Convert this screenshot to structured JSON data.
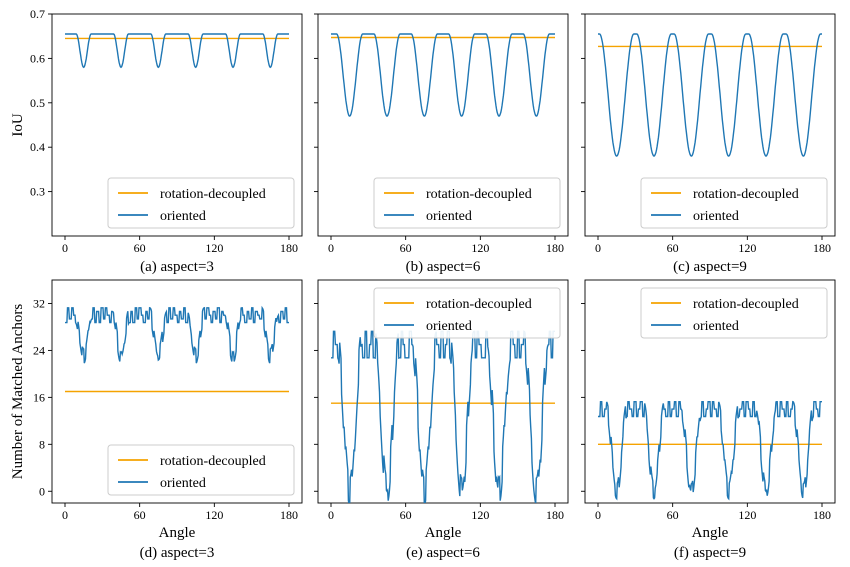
{
  "colors": {
    "rotation_decoupled": "#f5a300",
    "oriented": "#1f77b4"
  },
  "chart_data": [
    {
      "type": "line",
      "caption": "(a) aspect=3",
      "xlabel": "",
      "ylabel": "IoU",
      "xlim": [
        0,
        180
      ],
      "ylim": [
        0.2,
        0.7
      ],
      "xticks": [
        0,
        60,
        120,
        180
      ],
      "yticks": [
        0.3,
        0.4,
        0.5,
        0.6,
        0.7
      ],
      "legend": "bottom-right",
      "series": [
        {
          "name": "rotation-decoupled",
          "kind": "constant",
          "value": 0.645
        },
        {
          "name": "oriented",
          "kind": "periodic",
          "period": 30,
          "phase": 15,
          "top": 0.655,
          "bottom": 0.58,
          "plateau": 0.6,
          "spikes": []
        }
      ]
    },
    {
      "type": "line",
      "caption": "(b) aspect=6",
      "xlabel": "",
      "ylabel": "",
      "xlim": [
        0,
        180
      ],
      "ylim": [
        0.2,
        0.7
      ],
      "xticks": [
        0,
        60,
        120,
        180
      ],
      "yticks": [
        0.3,
        0.4,
        0.5,
        0.6,
        0.7
      ],
      "legend": "bottom-right",
      "series": [
        {
          "name": "rotation-decoupled",
          "kind": "constant",
          "value": 0.647
        },
        {
          "name": "oriented",
          "kind": "periodic",
          "period": 30,
          "phase": 15,
          "top": 0.655,
          "bottom": 0.47,
          "plateau": 0.3,
          "spikes": []
        }
      ]
    },
    {
      "type": "line",
      "caption": "(c) aspect=9",
      "xlabel": "",
      "ylabel": "",
      "xlim": [
        0,
        180
      ],
      "ylim": [
        0.2,
        0.7
      ],
      "xticks": [
        0,
        60,
        120,
        180
      ],
      "yticks": [
        0.3,
        0.4,
        0.5,
        0.6,
        0.7
      ],
      "legend": "bottom-right",
      "series": [
        {
          "name": "rotation-decoupled",
          "kind": "constant",
          "value": 0.627
        },
        {
          "name": "oriented",
          "kind": "periodic",
          "period": 30,
          "phase": 15,
          "top": 0.655,
          "bottom": 0.38,
          "plateau": 0.08,
          "spikes": []
        }
      ]
    },
    {
      "type": "line",
      "caption": "(d) aspect=3",
      "xlabel": "Angle",
      "ylabel": "Number of Matched Anchors",
      "xlim": [
        0,
        180
      ],
      "ylim": [
        -2,
        36
      ],
      "xticks": [
        0,
        60,
        120,
        180
      ],
      "yticks": [
        0,
        8,
        16,
        24,
        32
      ],
      "legend": "bottom-right",
      "series": [
        {
          "name": "rotation-decoupled",
          "kind": "constant",
          "value": 17
        },
        {
          "name": "oriented",
          "kind": "periodic",
          "period": 30,
          "phase": 15,
          "top": 30,
          "bottom": 23,
          "plateau": 0.55,
          "spikes": [
            -2,
            2,
            -1,
            2,
            0,
            -2,
            1,
            -1,
            2,
            -2,
            1,
            0,
            -1,
            2,
            -2,
            1
          ]
        }
      ]
    },
    {
      "type": "line",
      "caption": "(e) aspect=6",
      "xlabel": "Angle",
      "ylabel": "",
      "xlim": [
        0,
        180
      ],
      "ylim": [
        -2,
        36
      ],
      "xticks": [
        0,
        60,
        120,
        180
      ],
      "yticks": [
        0,
        8,
        16,
        24,
        32
      ],
      "legend": "top-right",
      "series": [
        {
          "name": "rotation-decoupled",
          "kind": "constant",
          "value": 15
        },
        {
          "name": "oriented",
          "kind": "periodic",
          "period": 30,
          "phase": 15,
          "top": 25,
          "bottom": 0,
          "plateau": 0.35,
          "spikes": [
            -1,
            1,
            0,
            -1,
            1,
            -1,
            0,
            1,
            -1,
            1,
            0,
            -1
          ]
        }
      ]
    },
    {
      "type": "line",
      "caption": "(f) aspect=9",
      "xlabel": "Angle",
      "ylabel": "",
      "xlim": [
        0,
        180
      ],
      "ylim": [
        -2,
        36
      ],
      "xticks": [
        0,
        60,
        120,
        180
      ],
      "yticks": [
        0,
        8,
        16,
        24,
        32
      ],
      "legend": "top-right",
      "series": [
        {
          "name": "rotation-decoupled",
          "kind": "constant",
          "value": 8
        },
        {
          "name": "oriented",
          "kind": "periodic",
          "period": 30,
          "phase": 15,
          "top": 14,
          "bottom": 0,
          "plateau": 0.45,
          "spikes": [
            -1,
            1,
            -1,
            0,
            1,
            -1,
            1,
            0
          ]
        }
      ]
    }
  ]
}
